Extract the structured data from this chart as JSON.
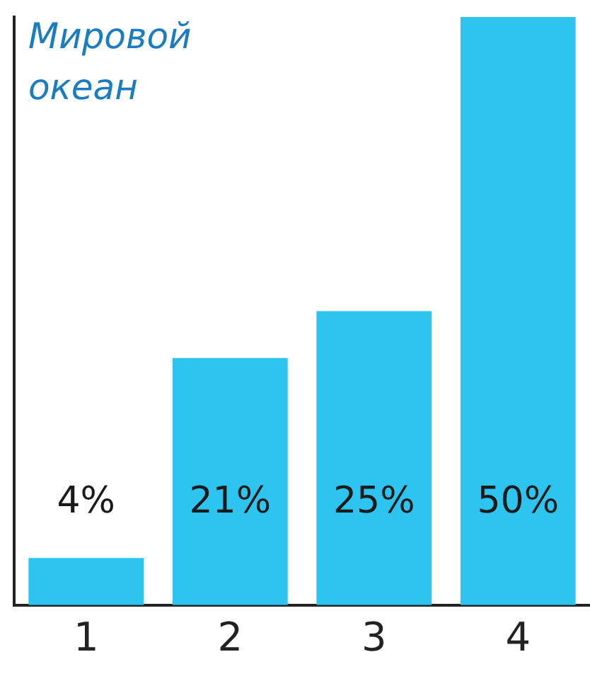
{
  "chart_data": {
    "type": "bar",
    "title": "Мировой\nокеан",
    "categories": [
      "1",
      "2",
      "3",
      "4"
    ],
    "values": [
      4,
      21,
      25,
      50
    ],
    "value_labels": [
      "4%",
      "21%",
      "25%",
      "50%"
    ],
    "color": "#2ec4f0",
    "grid": false,
    "legend": false,
    "tick_labels": "x"
  }
}
